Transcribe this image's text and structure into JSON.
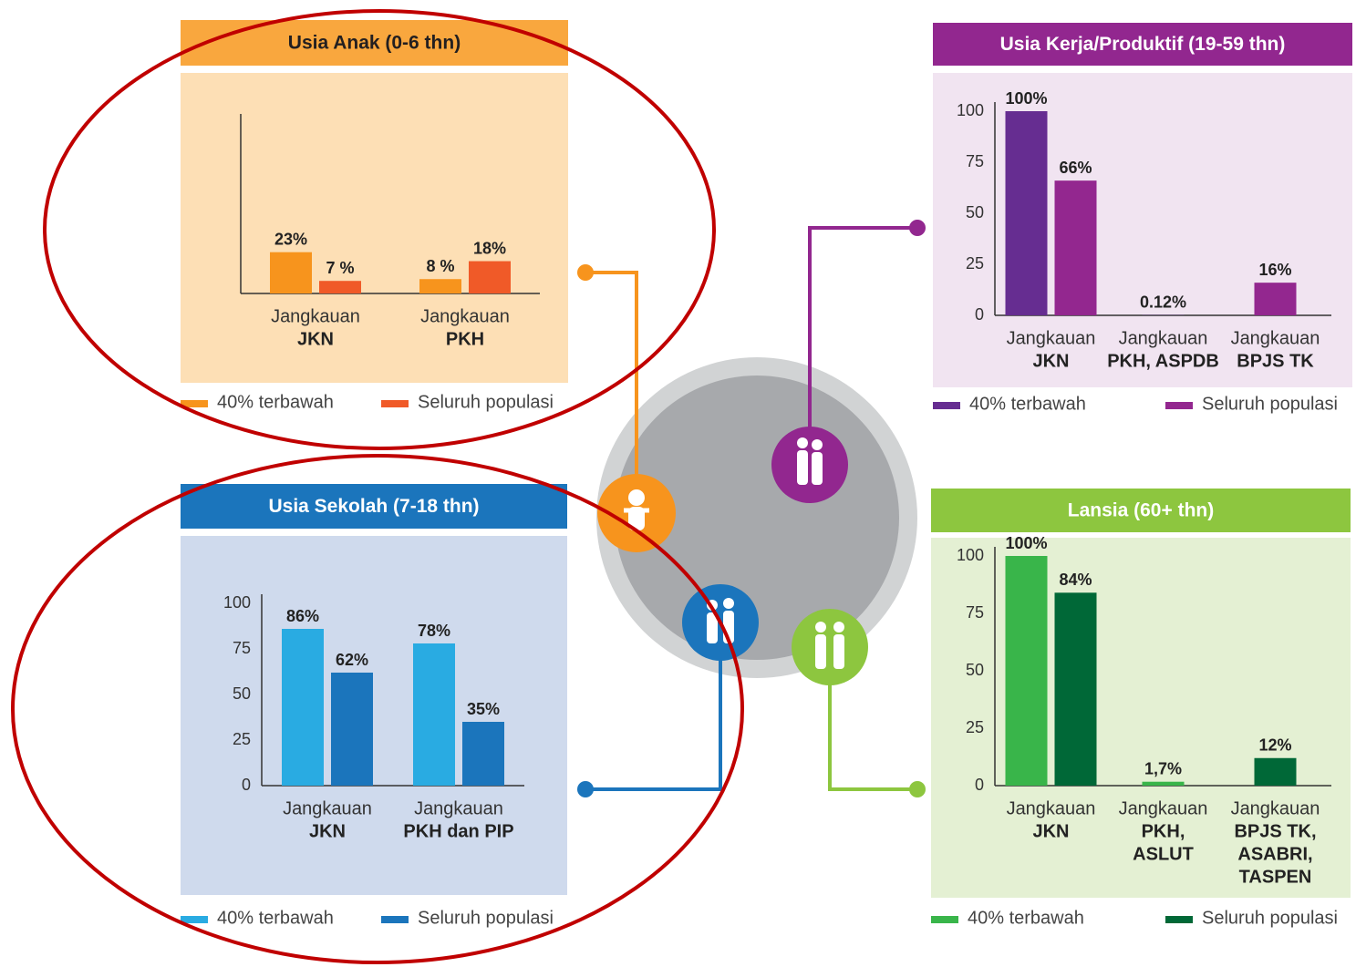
{
  "chart_data": [
    {
      "type": "bar",
      "title": "Usia Anak (0-6 thn)",
      "categories": [
        [
          "Jangkauan",
          "JKN"
        ],
        [
          "Jangkauan",
          "PKH"
        ]
      ],
      "series": [
        {
          "name": "40% terbawah",
          "color": "#f7941d",
          "values": [
            23,
            8
          ],
          "value_labels": [
            "23%",
            "8 %"
          ]
        },
        {
          "name": "Seluruh populasi",
          "color": "#f05a28",
          "values": [
            7,
            18
          ],
          "value_labels": [
            "7 %",
            "18%"
          ]
        }
      ],
      "ylim": [
        0,
        100
      ]
    },
    {
      "type": "bar",
      "title": "Usia Kerja/Produktif (19-59 thn)",
      "categories": [
        [
          "Jangkauan",
          "JKN"
        ],
        [
          "Jangkauan",
          "PKH, ASPDB"
        ],
        [
          "Jangkauan",
          "BPJS TK"
        ]
      ],
      "series": [
        {
          "name": "40% terbawah",
          "color": "#662d91",
          "values": [
            100,
            0.12,
            null
          ],
          "value_labels": [
            "100%",
            "0.12%",
            null
          ]
        },
        {
          "name": "Seluruh populasi",
          "color": "#93278f",
          "values": [
            66,
            null,
            16
          ],
          "value_labels": [
            "66%",
            null,
            "16%"
          ]
        }
      ],
      "ylim": [
        0,
        100
      ],
      "yticks": [
        0,
        25,
        50,
        75,
        100
      ]
    },
    {
      "type": "bar",
      "title": "Usia Sekolah (7-18 thn)",
      "categories": [
        [
          "Jangkauan",
          "JKN"
        ],
        [
          "Jangkauan",
          "PKH dan PIP"
        ]
      ],
      "series": [
        {
          "name": "40% terbawah",
          "color": "#29abe2",
          "values": [
            86,
            78
          ],
          "value_labels": [
            "86%",
            "78%"
          ]
        },
        {
          "name": "Seluruh populasi",
          "color": "#1b75bc",
          "values": [
            62,
            35
          ],
          "value_labels": [
            "62%",
            "35%"
          ]
        }
      ],
      "ylim": [
        0,
        100
      ],
      "yticks": [
        0,
        25,
        50,
        75,
        100
      ]
    },
    {
      "type": "bar",
      "title": "Lansia (60+ thn)",
      "categories": [
        [
          "Jangkauan",
          "JKN"
        ],
        [
          "Jangkauan",
          "PKH,",
          "ASLUT"
        ],
        [
          "Jangkauan",
          "BPJS TK,",
          "ASABRI,",
          "TASPEN"
        ]
      ],
      "series": [
        {
          "name": "40% terbawah",
          "color": "#39b54a",
          "values": [
            100,
            1.7,
            null
          ],
          "value_labels": [
            "100%",
            "1,7%",
            null
          ]
        },
        {
          "name": "Seluruh populasi",
          "color": "#006837",
          "values": [
            84,
            null,
            12
          ],
          "value_labels": [
            "84%",
            null,
            "12%"
          ]
        }
      ],
      "ylim": [
        0,
        100
      ],
      "yticks": [
        0,
        25,
        50,
        75,
        100
      ]
    }
  ]
}
